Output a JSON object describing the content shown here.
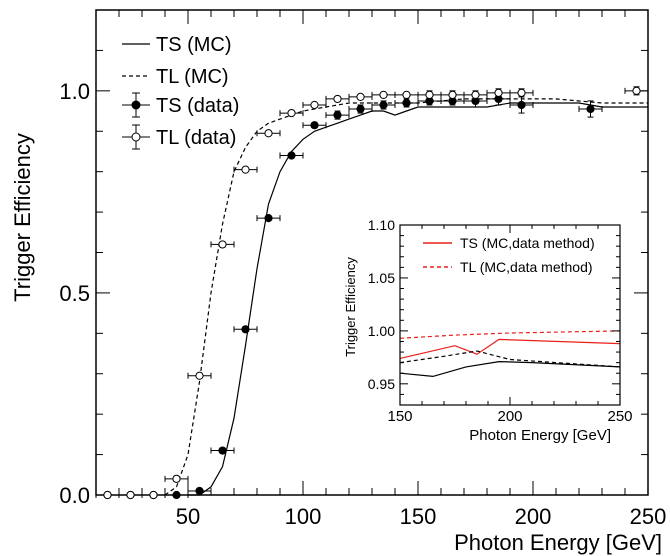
{
  "chart_data": [
    {
      "type": "scatter",
      "xlabel": "Photon Energy [GeV]",
      "ylabel": "Trigger Efficiency",
      "xlim": [
        10,
        250
      ],
      "ylim": [
        0,
        1.2
      ],
      "x_ticks": [
        50,
        100,
        150,
        200,
        250
      ],
      "y_ticks": [
        0.0,
        0.5,
        1.0
      ],
      "x_tick_labels": [
        "50",
        "100",
        "150",
        "200",
        "250"
      ],
      "y_tick_labels": [
        "0.0",
        "0.5",
        "1.0"
      ],
      "legend_position": "top-left",
      "series": [
        {
          "name": "TS (MC)",
          "style": "solid-line",
          "color": "#000000",
          "x": [
            50,
            55,
            60,
            65,
            70,
            75,
            80,
            85,
            90,
            95,
            100,
            105,
            110,
            115,
            120,
            125,
            130,
            135,
            140,
            145,
            150,
            160,
            170,
            180,
            190,
            200,
            210,
            220,
            230,
            250
          ],
          "y": [
            0.0,
            0.0,
            0.02,
            0.07,
            0.19,
            0.37,
            0.56,
            0.72,
            0.8,
            0.85,
            0.88,
            0.9,
            0.91,
            0.92,
            0.93,
            0.94,
            0.95,
            0.95,
            0.94,
            0.95,
            0.96,
            0.96,
            0.96,
            0.96,
            0.97,
            0.97,
            0.97,
            0.97,
            0.96,
            0.96
          ]
        },
        {
          "name": "TL (MC)",
          "style": "dashed-line",
          "color": "#000000",
          "x": [
            40,
            45,
            50,
            55,
            60,
            65,
            70,
            75,
            80,
            85,
            90,
            95,
            100,
            110,
            120,
            130,
            140,
            150,
            170,
            190,
            210,
            230,
            250
          ],
          "y": [
            0.0,
            0.02,
            0.1,
            0.28,
            0.5,
            0.67,
            0.8,
            0.86,
            0.9,
            0.92,
            0.93,
            0.94,
            0.95,
            0.96,
            0.97,
            0.97,
            0.97,
            0.97,
            0.98,
            0.98,
            0.98,
            0.97,
            0.97
          ]
        },
        {
          "name": "TS (data)",
          "style": "filled-markers",
          "color": "#000000",
          "x": [
            15,
            25,
            35,
            45,
            55,
            65,
            75,
            85,
            95,
            105,
            115,
            125,
            135,
            145,
            155,
            165,
            175,
            185,
            195,
            225
          ],
          "y": [
            0.0,
            0.0,
            0.0,
            0.0,
            0.01,
            0.11,
            0.41,
            0.685,
            0.84,
            0.915,
            0.94,
            0.955,
            0.965,
            0.97,
            0.975,
            0.975,
            0.975,
            0.98,
            0.965,
            0.955
          ],
          "x_err": 5,
          "y_err": [
            0,
            0,
            0,
            0,
            0,
            0,
            0,
            0,
            0,
            0,
            0.01,
            0.01,
            0.01,
            0.01,
            0.01,
            0.01,
            0.015,
            0.015,
            0.02,
            0.02
          ]
        },
        {
          "name": "TL (data)",
          "style": "open-markers",
          "color": "#000000",
          "x": [
            15,
            25,
            35,
            45,
            55,
            65,
            75,
            85,
            95,
            105,
            115,
            125,
            135,
            145,
            155,
            165,
            175,
            185,
            195,
            245
          ],
          "y": [
            0.0,
            0.0,
            0.0,
            0.04,
            0.295,
            0.62,
            0.805,
            0.895,
            0.945,
            0.965,
            0.98,
            0.985,
            0.99,
            0.99,
            0.99,
            0.99,
            0.99,
            0.995,
            0.995,
            1.0
          ],
          "x_err": 5,
          "y_err": [
            0,
            0,
            0,
            0,
            0,
            0,
            0,
            0,
            0,
            0,
            0.005,
            0.005,
            0.005,
            0.005,
            0.01,
            0.01,
            0.01,
            0.01,
            0.01,
            0.01
          ]
        }
      ]
    },
    {
      "type": "line",
      "xlabel": "Photon Energy [GeV]",
      "ylabel": "Trigger Efficiency",
      "xlim": [
        150,
        250
      ],
      "ylim": [
        0.93,
        1.1
      ],
      "x_ticks": [
        150,
        200,
        250
      ],
      "y_ticks": [
        0.95,
        1.0,
        1.05,
        1.1
      ],
      "x_tick_labels": [
        "150",
        "200",
        "250"
      ],
      "y_tick_labels": [
        "0.95",
        "1.00",
        "1.05",
        "1.10"
      ],
      "legend_position": "top-right",
      "series": [
        {
          "name": "TS (MC,data method)",
          "style": "solid-line",
          "color": "#e8201a",
          "x": [
            150,
            175,
            185,
            195,
            250
          ],
          "y": [
            0.974,
            0.986,
            0.978,
            0.992,
            0.988
          ]
        },
        {
          "name": "TL (MC,data method)",
          "style": "dashed-line",
          "color": "#e8201a",
          "x": [
            150,
            175,
            200,
            250
          ],
          "y": [
            0.993,
            0.996,
            0.998,
            1.0
          ]
        },
        {
          "style": "solid-line",
          "color": "#000000",
          "x": [
            150,
            165,
            180,
            195,
            210,
            250
          ],
          "y": [
            0.96,
            0.957,
            0.966,
            0.971,
            0.97,
            0.966
          ]
        },
        {
          "style": "dashed-line",
          "color": "#000000",
          "x": [
            150,
            170,
            185,
            200,
            250
          ],
          "y": [
            0.97,
            0.976,
            0.981,
            0.973,
            0.966
          ]
        }
      ]
    }
  ]
}
